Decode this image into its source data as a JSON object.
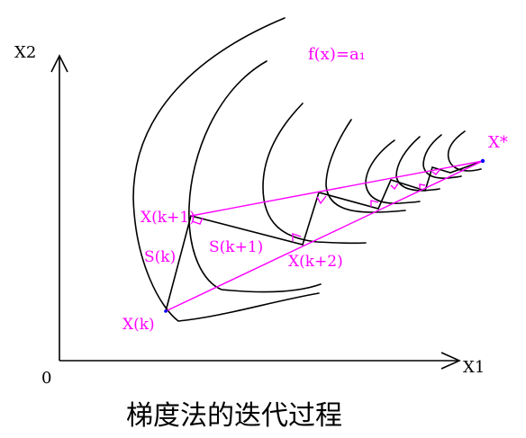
{
  "axes": {
    "y_label": "X2",
    "x_label": "X1",
    "origin_label": "0"
  },
  "labels": {
    "contour": "f(x)=a₁",
    "x_star": "X*",
    "x_k": "X(k)",
    "x_k1": "X(k+1)",
    "x_k2": "X(k+2)",
    "s_k": "S(k)",
    "s_k1": "S(k+1)"
  },
  "caption": "梯度法的迭代过程",
  "colors": {
    "curves": "#000000",
    "construction": "#ff00ff"
  }
}
